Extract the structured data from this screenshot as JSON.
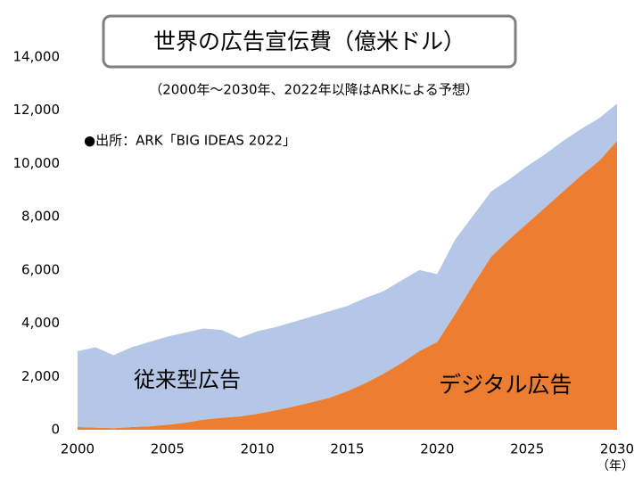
{
  "chart_data": {
    "type": "stacked_area",
    "title": "世界の広告宣伝費（億米ドル）",
    "subtitle": "（2000年～2030年、2022年以降はARKによる予想）",
    "source": "●出所：ARK「BIG IDEAS 2022」",
    "x_unit": "（年）",
    "x": [
      2000,
      2001,
      2002,
      2003,
      2004,
      2005,
      2006,
      2007,
      2008,
      2009,
      2010,
      2011,
      2012,
      2013,
      2014,
      2015,
      2016,
      2017,
      2018,
      2019,
      2020,
      2021,
      2022,
      2023,
      2024,
      2025,
      2026,
      2027,
      2028,
      2029,
      2030
    ],
    "series": [
      {
        "name": "デジタル広告",
        "color": "#ed7d31",
        "values": [
          100,
          80,
          60,
          100,
          130,
          190,
          270,
          380,
          450,
          500,
          600,
          730,
          870,
          1030,
          1200,
          1450,
          1750,
          2100,
          2500,
          2950,
          3300,
          4350,
          5450,
          6500,
          7150,
          7750,
          8350,
          8950,
          9550,
          10100,
          10850
        ]
      },
      {
        "name": "従来型広告",
        "color": "#b4c7e7",
        "values": [
          2850,
          3020,
          2740,
          3000,
          3170,
          3310,
          3380,
          3420,
          3300,
          2950,
          3100,
          3120,
          3180,
          3220,
          3250,
          3200,
          3200,
          3100,
          3100,
          3050,
          2550,
          2800,
          2600,
          2450,
          2250,
          2150,
          2000,
          1900,
          1750,
          1600,
          1400
        ]
      }
    ],
    "xlim": [
      2000,
      2030
    ],
    "xticks": [
      2000,
      2005,
      2010,
      2015,
      2020,
      2025,
      2030
    ],
    "ylim": [
      0,
      14000
    ],
    "yticks": [
      0,
      {
        "value": 2000,
        "label": "2,000"
      },
      {
        "value": 4000,
        "label": "4,000"
      },
      {
        "value": 6000,
        "label": "6,000"
      },
      {
        "value": 8000,
        "label": "8,000"
      },
      {
        "value": 10000,
        "label": "10,000"
      },
      {
        "value": 12000,
        "label": "12,000"
      },
      {
        "value": 14000,
        "label": "14,000"
      }
    ],
    "grid": false
  }
}
